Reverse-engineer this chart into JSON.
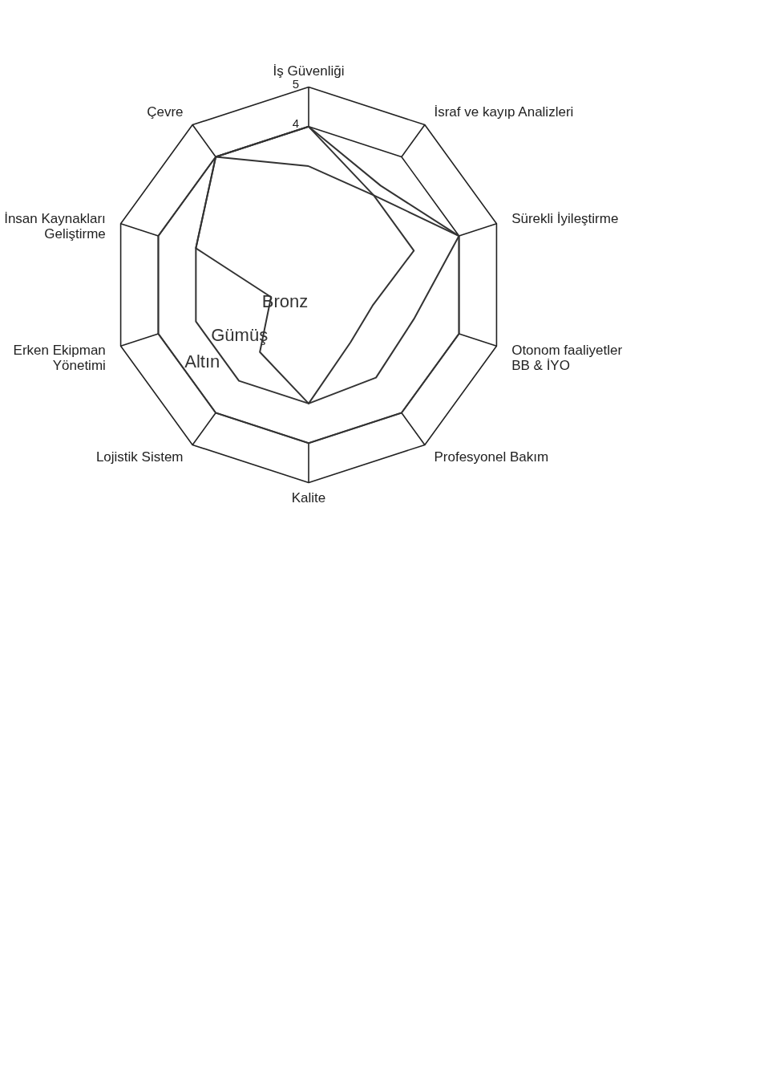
{
  "chart_data": {
    "type": "radar",
    "categories": [
      "İş Güvenliği",
      "İsraf ve kayıp Analizleri",
      "Sürekli İyileştirme",
      "Otonom faaliyetler\nBB & İYO",
      "Profesyonel Bakım",
      "Kalite",
      "Lojistik Sistem",
      "Erken Ekipman\nYönetimi",
      "İnsan Kaynakları\nGeliştirme",
      "Çevre"
    ],
    "series": [
      {
        "name": "Bronz",
        "color": "#333333",
        "values": [
          4,
          2.8,
          2.8,
          1.7,
          1.8,
          3,
          2.1,
          1.0,
          3,
          4
        ]
      },
      {
        "name": "Gümüş",
        "color": "#333333",
        "values": [
          3,
          2.8,
          4,
          2.8,
          2.9,
          3,
          3,
          3,
          3,
          4
        ]
      },
      {
        "name": "Altın",
        "color": "#333333",
        "values": [
          4,
          3.1,
          4,
          4,
          4,
          4,
          4,
          4,
          4,
          4
        ]
      }
    ],
    "ylim": [
      0,
      5
    ],
    "yticks": [
      4,
      5
    ],
    "grid": true
  }
}
